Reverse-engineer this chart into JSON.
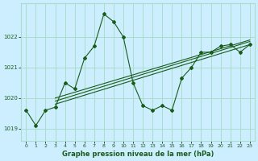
{
  "xlabel": "Graphe pression niveau de la mer (hPa)",
  "background_color": "#cceeff",
  "grid_color": "#aaddcc",
  "line_color": "#1a5c1a",
  "xlim": [
    -0.5,
    23.5
  ],
  "ylim": [
    1018.6,
    1023.1
  ],
  "yticks": [
    1019,
    1020,
    1021,
    1022
  ],
  "xticks": [
    0,
    1,
    2,
    3,
    4,
    5,
    6,
    7,
    8,
    9,
    10,
    11,
    12,
    13,
    14,
    15,
    16,
    17,
    18,
    19,
    20,
    21,
    22,
    23
  ],
  "x": [
    0,
    1,
    2,
    3,
    4,
    5,
    6,
    7,
    8,
    9,
    10,
    11,
    12,
    13,
    14,
    15,
    16,
    17,
    18,
    19,
    20,
    21,
    22,
    23
  ],
  "y": [
    1019.6,
    1019.1,
    1019.6,
    1019.7,
    1020.5,
    1020.3,
    1021.3,
    1021.7,
    1022.75,
    1022.5,
    1022.0,
    1020.5,
    1019.75,
    1019.6,
    1019.75,
    1019.6,
    1020.65,
    1021.0,
    1021.5,
    1021.5,
    1021.7,
    1021.75,
    1021.5,
    1021.75
  ],
  "trend1_x": [
    3,
    23
  ],
  "trend1_y": [
    1019.8,
    1021.75
  ],
  "trend2_x": [
    3,
    23
  ],
  "trend2_y": [
    1019.9,
    1021.85
  ],
  "trend3_x": [
    3,
    23
  ],
  "trend3_y": [
    1020.0,
    1021.9
  ]
}
